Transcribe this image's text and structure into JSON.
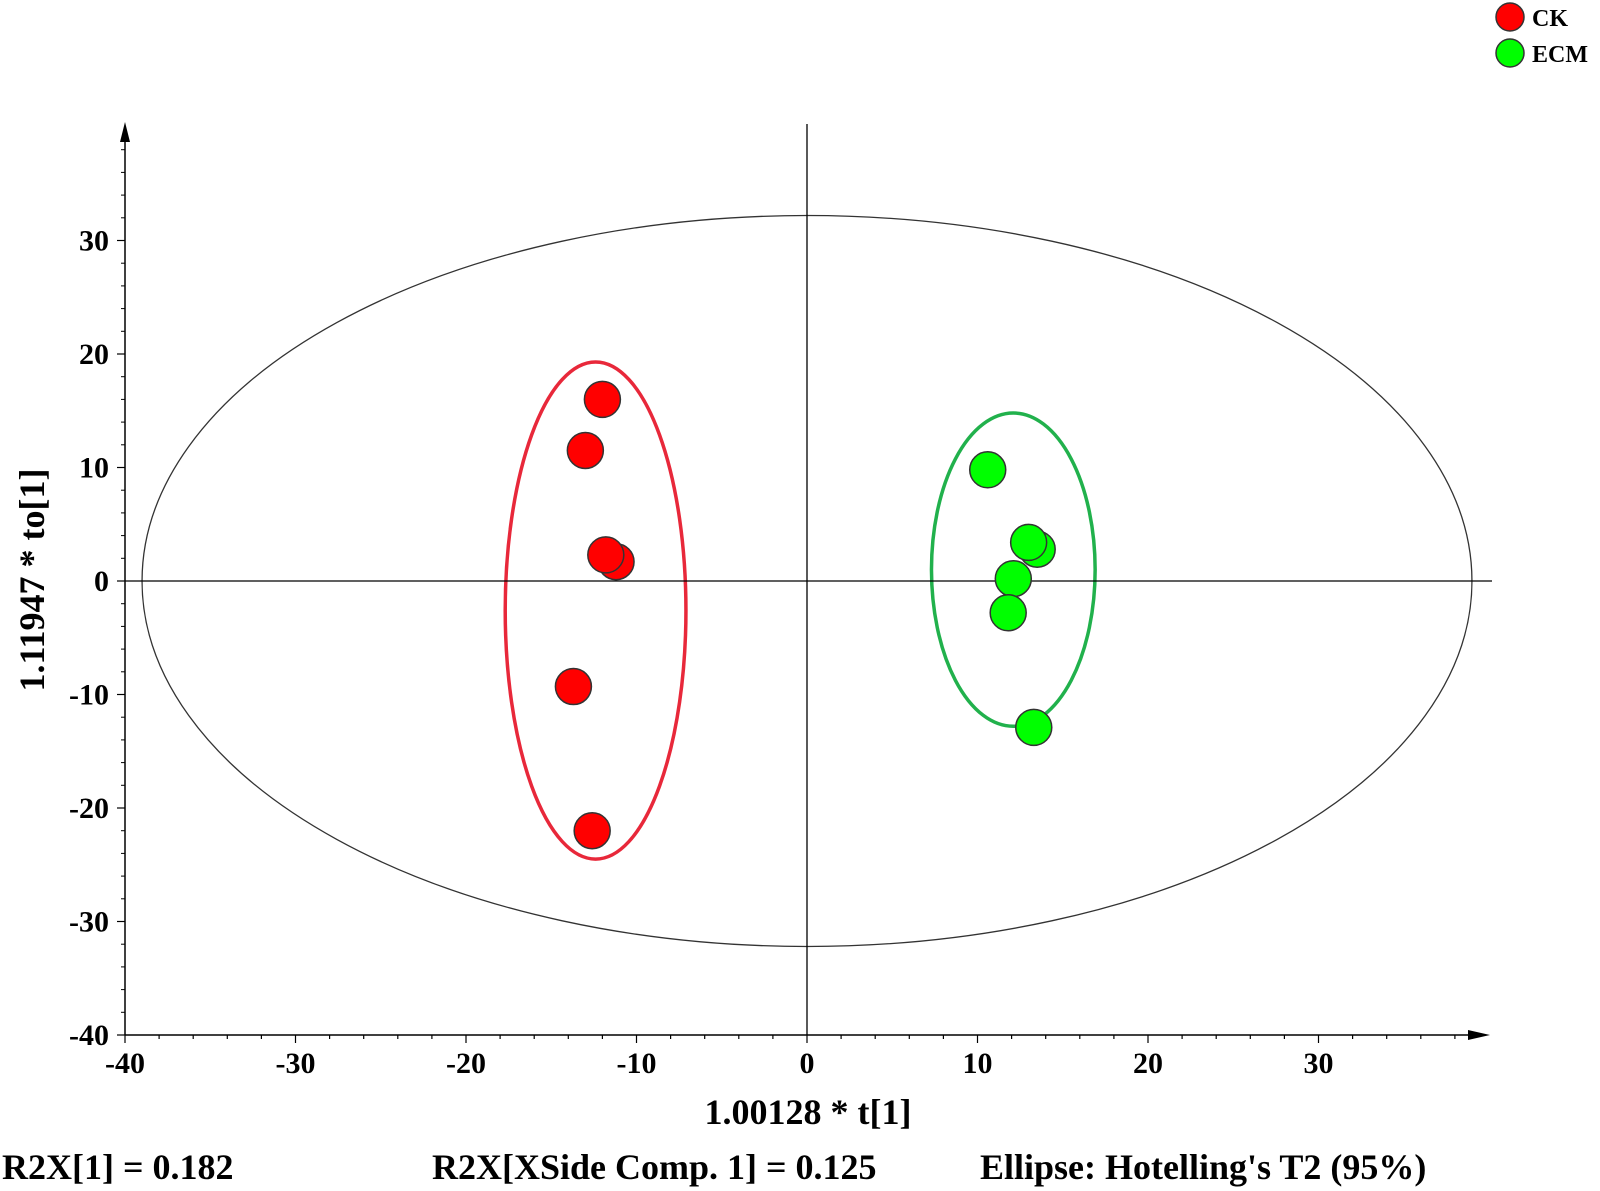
{
  "chart_data": {
    "type": "scatter",
    "xlabel": "1.00128 * t[1]",
    "ylabel": "1.11947 * to[1]",
    "xlim": [
      -40,
      40
    ],
    "ylim": [
      -40,
      40
    ],
    "xticks": [
      -40,
      -30,
      -20,
      -10,
      0,
      10,
      20,
      30
    ],
    "yticks": [
      -40,
      -30,
      -20,
      -10,
      0,
      10,
      20,
      30
    ],
    "grid": false,
    "legend_position": "top-right",
    "series": [
      {
        "name": "CK",
        "color": "#ff0000",
        "points": [
          {
            "x": -12.0,
            "y": 16.0
          },
          {
            "x": -13.0,
            "y": 11.5
          },
          {
            "x": -11.2,
            "y": 1.7
          },
          {
            "x": -11.8,
            "y": 2.3
          },
          {
            "x": -13.7,
            "y": -9.3
          },
          {
            "x": -12.6,
            "y": -22.0
          }
        ],
        "ellipse": {
          "cx": -12.4,
          "cy": -2.6,
          "rx": 5.3,
          "ry": 21.9,
          "color": "#e8283a"
        }
      },
      {
        "name": "ECM",
        "color": "#00ff00",
        "points": [
          {
            "x": 10.6,
            "y": 9.8
          },
          {
            "x": 13.5,
            "y": 2.8
          },
          {
            "x": 13.0,
            "y": 3.4
          },
          {
            "x": 12.1,
            "y": 0.2
          },
          {
            "x": 11.8,
            "y": -2.8
          },
          {
            "x": 13.3,
            "y": -12.9
          }
        ],
        "ellipse": {
          "cx": 12.1,
          "cy": 1.0,
          "rx": 4.8,
          "ry": 13.8,
          "color": "#21b14c"
        }
      }
    ],
    "hotelling_ellipse": {
      "cx": 0,
      "cy": 0,
      "rx": 39.0,
      "ry": 32.2
    },
    "footer": {
      "r2x": "R2X[1] = 0.182",
      "r2x_side": "R2X[XSide Comp. 1] = 0.125",
      "ellipse_note": "Ellipse: Hotelling's T2 (95%)"
    }
  }
}
